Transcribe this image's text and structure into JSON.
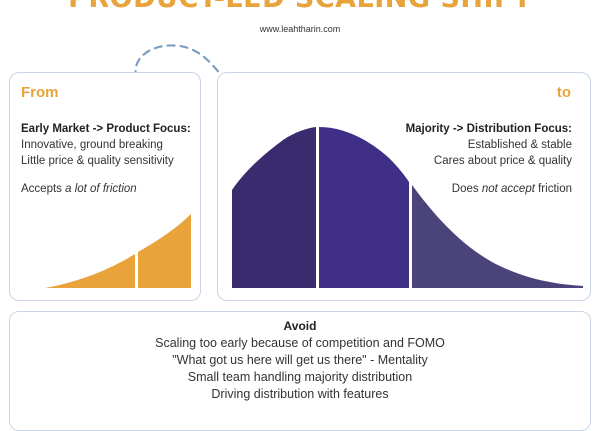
{
  "header": {
    "title": "PRODUCT-LED SCALING SHIFT",
    "website": "www.leahtharin.com"
  },
  "from_panel": {
    "label": "From",
    "heading": "Early Market -> Product Focus:",
    "lines": [
      "Innovative, ground breaking",
      "Little price & quality sensitivity"
    ],
    "friction_prefix": "Accepts ",
    "friction_emphasis": "a lot of friction",
    "friction_suffix": ""
  },
  "to_panel": {
    "label": "to",
    "heading": "Majority -> Distribution Focus:",
    "lines": [
      "Established  &  stable",
      "Cares about price & quality"
    ],
    "friction_prefix": "Does ",
    "friction_emphasis": "not accept",
    "friction_suffix": " friction"
  },
  "avoid_panel": {
    "title": "Avoid",
    "items": [
      "Scaling too early because of competition and FOMO",
      "\"What got us here will get us there\" - Mentality",
      "Small team handling majority distribution",
      "Driving distribution with features"
    ]
  },
  "colors": {
    "accent_orange": "#e8a33a",
    "curve_dark": "#3a2a6e",
    "curve_mid": "#3f2f86",
    "curve_light": "#4b447a",
    "panel_border": "#c9d5e6",
    "arrow": "#7e9ec0"
  },
  "icons": {
    "arrow": "dashed-curved-arrow-icon"
  }
}
